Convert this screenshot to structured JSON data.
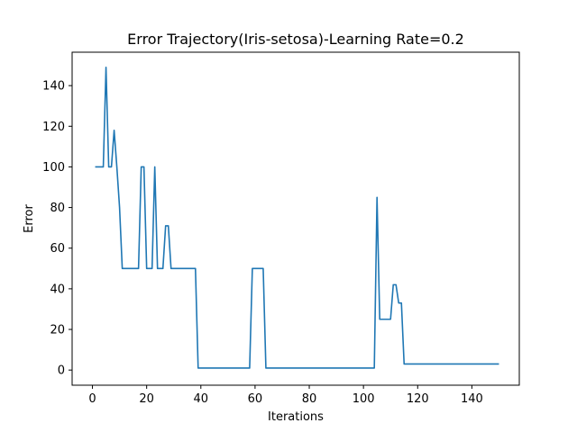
{
  "chart_data": {
    "type": "line",
    "title": "Error Trajectory(Iris-setosa)-Learning Rate=0.2",
    "xlabel": "Iterations",
    "ylabel": "Error",
    "xlim": [
      -7.5,
      157.5
    ],
    "ylim": [
      -7.45,
      156.45
    ],
    "xticks": [
      0,
      20,
      40,
      60,
      80,
      100,
      120,
      140
    ],
    "yticks": [
      0,
      20,
      40,
      60,
      80,
      100,
      120,
      140
    ],
    "grid": false,
    "legend": "none",
    "series": [
      {
        "color": "#1f77b4",
        "x": [
          1,
          2,
          3,
          4,
          5,
          6,
          7,
          8,
          9,
          10,
          11,
          12,
          13,
          14,
          15,
          16,
          17,
          18,
          19,
          20,
          21,
          22,
          23,
          24,
          25,
          26,
          27,
          28,
          29,
          30,
          31,
          32,
          33,
          34,
          35,
          36,
          37,
          38,
          39,
          40,
          58,
          59,
          60,
          61,
          62,
          63,
          64,
          65,
          104,
          105,
          106,
          107,
          108,
          109,
          110,
          111,
          112,
          113,
          114,
          115,
          150
        ],
        "y": [
          100,
          100,
          100,
          100,
          149,
          100,
          100,
          118,
          100,
          80,
          50,
          50,
          50,
          50,
          50,
          50,
          50,
          100,
          100,
          50,
          50,
          50,
          100,
          50,
          50,
          50,
          71,
          71,
          50,
          50,
          50,
          50,
          50,
          50,
          50,
          50,
          50,
          50,
          1,
          1,
          1,
          50,
          50,
          50,
          50,
          50,
          1,
          1,
          1,
          85,
          25,
          25,
          25,
          25,
          25,
          42,
          42,
          33,
          33,
          3,
          3
        ]
      }
    ]
  }
}
